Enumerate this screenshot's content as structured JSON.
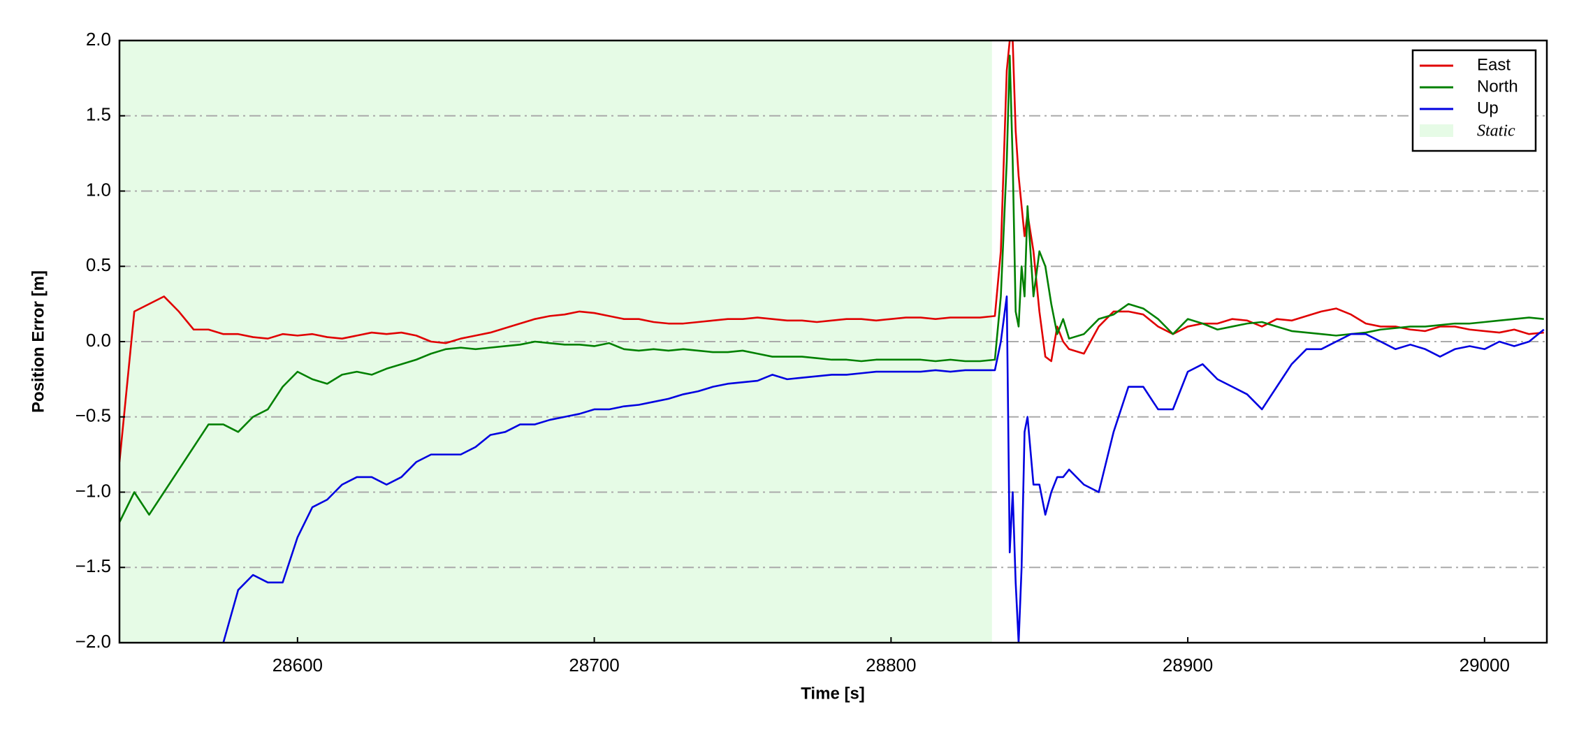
{
  "chart_data": {
    "type": "line",
    "xlabel": "Time [s]",
    "ylabel": "Position Error [m]",
    "xlim": [
      28540,
      29021
    ],
    "ylim": [
      -2.0,
      2.0
    ],
    "xticks": [
      28600,
      28700,
      28800,
      28900,
      29000
    ],
    "yticks": [
      {
        "value": -2.0,
        "label": "−2.0"
      },
      {
        "value": -1.5,
        "label": "−1.5"
      },
      {
        "value": -1.0,
        "label": "−1.0"
      },
      {
        "value": -0.5,
        "label": "−0.5"
      },
      {
        "value": 0.0,
        "label": "0.0"
      },
      {
        "value": 0.5,
        "label": "0.5"
      },
      {
        "value": 1.0,
        "label": "1.0"
      },
      {
        "value": 1.5,
        "label": "1.5"
      },
      {
        "value": 2.0,
        "label": "2.0"
      }
    ],
    "grid": true,
    "legend": "upper right",
    "spans": [
      {
        "name": "Static",
        "color": "#e6fbe6",
        "x": [
          28540,
          28834
        ]
      }
    ],
    "x": [
      28540,
      28545,
      28550,
      28555,
      28560,
      28565,
      28570,
      28575,
      28580,
      28585,
      28590,
      28595,
      28600,
      28605,
      28610,
      28615,
      28620,
      28625,
      28630,
      28635,
      28640,
      28645,
      28650,
      28655,
      28660,
      28665,
      28670,
      28675,
      28680,
      28685,
      28690,
      28695,
      28700,
      28705,
      28710,
      28715,
      28720,
      28725,
      28730,
      28735,
      28740,
      28745,
      28750,
      28755,
      28760,
      28765,
      28770,
      28775,
      28780,
      28785,
      28790,
      28795,
      28800,
      28805,
      28810,
      28815,
      28820,
      28825,
      28830,
      28835,
      28837,
      28839,
      28840,
      28841,
      28842,
      28843,
      28844,
      28845,
      28846,
      28848,
      28850,
      28852,
      28854,
      28856,
      28858,
      28860,
      28865,
      28870,
      28875,
      28880,
      28885,
      28890,
      28895,
      28900,
      28905,
      28910,
      28915,
      28920,
      28925,
      28930,
      28935,
      28940,
      28945,
      28950,
      28955,
      28960,
      28965,
      28970,
      28975,
      28980,
      28985,
      28990,
      28995,
      29000,
      29005,
      29010,
      29015,
      29020
    ],
    "series": [
      {
        "name": "East",
        "color": "#e00000",
        "values": [
          -0.8,
          0.2,
          0.25,
          0.3,
          0.2,
          0.08,
          0.08,
          0.05,
          0.05,
          0.03,
          0.02,
          0.05,
          0.04,
          0.05,
          0.03,
          0.02,
          0.04,
          0.06,
          0.05,
          0.06,
          0.04,
          0.0,
          -0.01,
          0.02,
          0.04,
          0.06,
          0.09,
          0.12,
          0.15,
          0.17,
          0.18,
          0.2,
          0.19,
          0.17,
          0.15,
          0.15,
          0.13,
          0.12,
          0.12,
          0.13,
          0.14,
          0.15,
          0.15,
          0.16,
          0.15,
          0.14,
          0.14,
          0.13,
          0.14,
          0.15,
          0.15,
          0.14,
          0.15,
          0.16,
          0.16,
          0.15,
          0.16,
          0.16,
          0.16,
          0.17,
          0.6,
          1.8,
          2.0,
          2.0,
          1.4,
          1.1,
          0.9,
          0.7,
          0.85,
          0.6,
          0.2,
          -0.1,
          -0.13,
          0.1,
          0.0,
          -0.05,
          -0.08,
          0.1,
          0.2,
          0.2,
          0.18,
          0.1,
          0.05,
          0.1,
          0.12,
          0.12,
          0.15,
          0.14,
          0.1,
          0.15,
          0.14,
          0.17,
          0.2,
          0.22,
          0.18,
          0.12,
          0.1,
          0.1,
          0.08,
          0.07,
          0.1,
          0.1,
          0.08,
          0.07,
          0.06,
          0.08,
          0.05,
          0.06
        ]
      },
      {
        "name": "North",
        "color": "#008000",
        "values": [
          -1.2,
          -1.0,
          -1.15,
          -1.0,
          -0.85,
          -0.7,
          -0.55,
          -0.55,
          -0.6,
          -0.5,
          -0.45,
          -0.3,
          -0.2,
          -0.25,
          -0.28,
          -0.22,
          -0.2,
          -0.22,
          -0.18,
          -0.15,
          -0.12,
          -0.08,
          -0.05,
          -0.04,
          -0.05,
          -0.04,
          -0.03,
          -0.02,
          0.0,
          -0.01,
          -0.02,
          -0.02,
          -0.03,
          -0.01,
          -0.05,
          -0.06,
          -0.05,
          -0.06,
          -0.05,
          -0.06,
          -0.07,
          -0.07,
          -0.06,
          -0.08,
          -0.1,
          -0.1,
          -0.1,
          -0.11,
          -0.12,
          -0.12,
          -0.13,
          -0.12,
          -0.12,
          -0.12,
          -0.12,
          -0.13,
          -0.12,
          -0.13,
          -0.13,
          -0.12,
          0.3,
          1.2,
          1.9,
          1.2,
          0.2,
          0.1,
          0.5,
          0.3,
          0.9,
          0.3,
          0.6,
          0.5,
          0.25,
          0.05,
          0.15,
          0.02,
          0.05,
          0.15,
          0.18,
          0.25,
          0.22,
          0.15,
          0.05,
          0.15,
          0.12,
          0.08,
          0.1,
          0.12,
          0.13,
          0.1,
          0.07,
          0.06,
          0.05,
          0.04,
          0.05,
          0.06,
          0.08,
          0.09,
          0.1,
          0.1,
          0.11,
          0.12,
          0.12,
          0.13,
          0.14,
          0.15,
          0.16,
          0.15
        ]
      },
      {
        "name": "Up",
        "color": "#0000e0",
        "values": [
          null,
          null,
          null,
          null,
          null,
          null,
          null,
          -2.0,
          -1.65,
          -1.55,
          -1.6,
          -1.6,
          -1.3,
          -1.1,
          -1.05,
          -0.95,
          -0.9,
          -0.9,
          -0.95,
          -0.9,
          -0.8,
          -0.75,
          -0.75,
          -0.75,
          -0.7,
          -0.62,
          -0.6,
          -0.55,
          -0.55,
          -0.52,
          -0.5,
          -0.48,
          -0.45,
          -0.45,
          -0.43,
          -0.42,
          -0.4,
          -0.38,
          -0.35,
          -0.33,
          -0.3,
          -0.28,
          -0.27,
          -0.26,
          -0.22,
          -0.25,
          -0.24,
          -0.23,
          -0.22,
          -0.22,
          -0.21,
          -0.2,
          -0.2,
          -0.2,
          -0.2,
          -0.19,
          -0.2,
          -0.19,
          -0.19,
          -0.19,
          0.0,
          0.3,
          -1.4,
          -1.0,
          -1.6,
          -2.0,
          -1.5,
          -0.6,
          -0.5,
          -0.95,
          -0.95,
          -1.15,
          -1.0,
          -0.9,
          -0.9,
          -0.85,
          -0.95,
          -1.0,
          -0.6,
          -0.3,
          -0.3,
          -0.45,
          -0.45,
          -0.2,
          -0.15,
          -0.25,
          -0.3,
          -0.35,
          -0.45,
          -0.3,
          -0.15,
          -0.05,
          -0.05,
          0.0,
          0.05,
          0.05,
          0.0,
          -0.05,
          -0.02,
          -0.05,
          -0.1,
          -0.05,
          -0.03,
          -0.05,
          0.0,
          -0.03,
          0.0,
          0.08
        ]
      }
    ]
  }
}
